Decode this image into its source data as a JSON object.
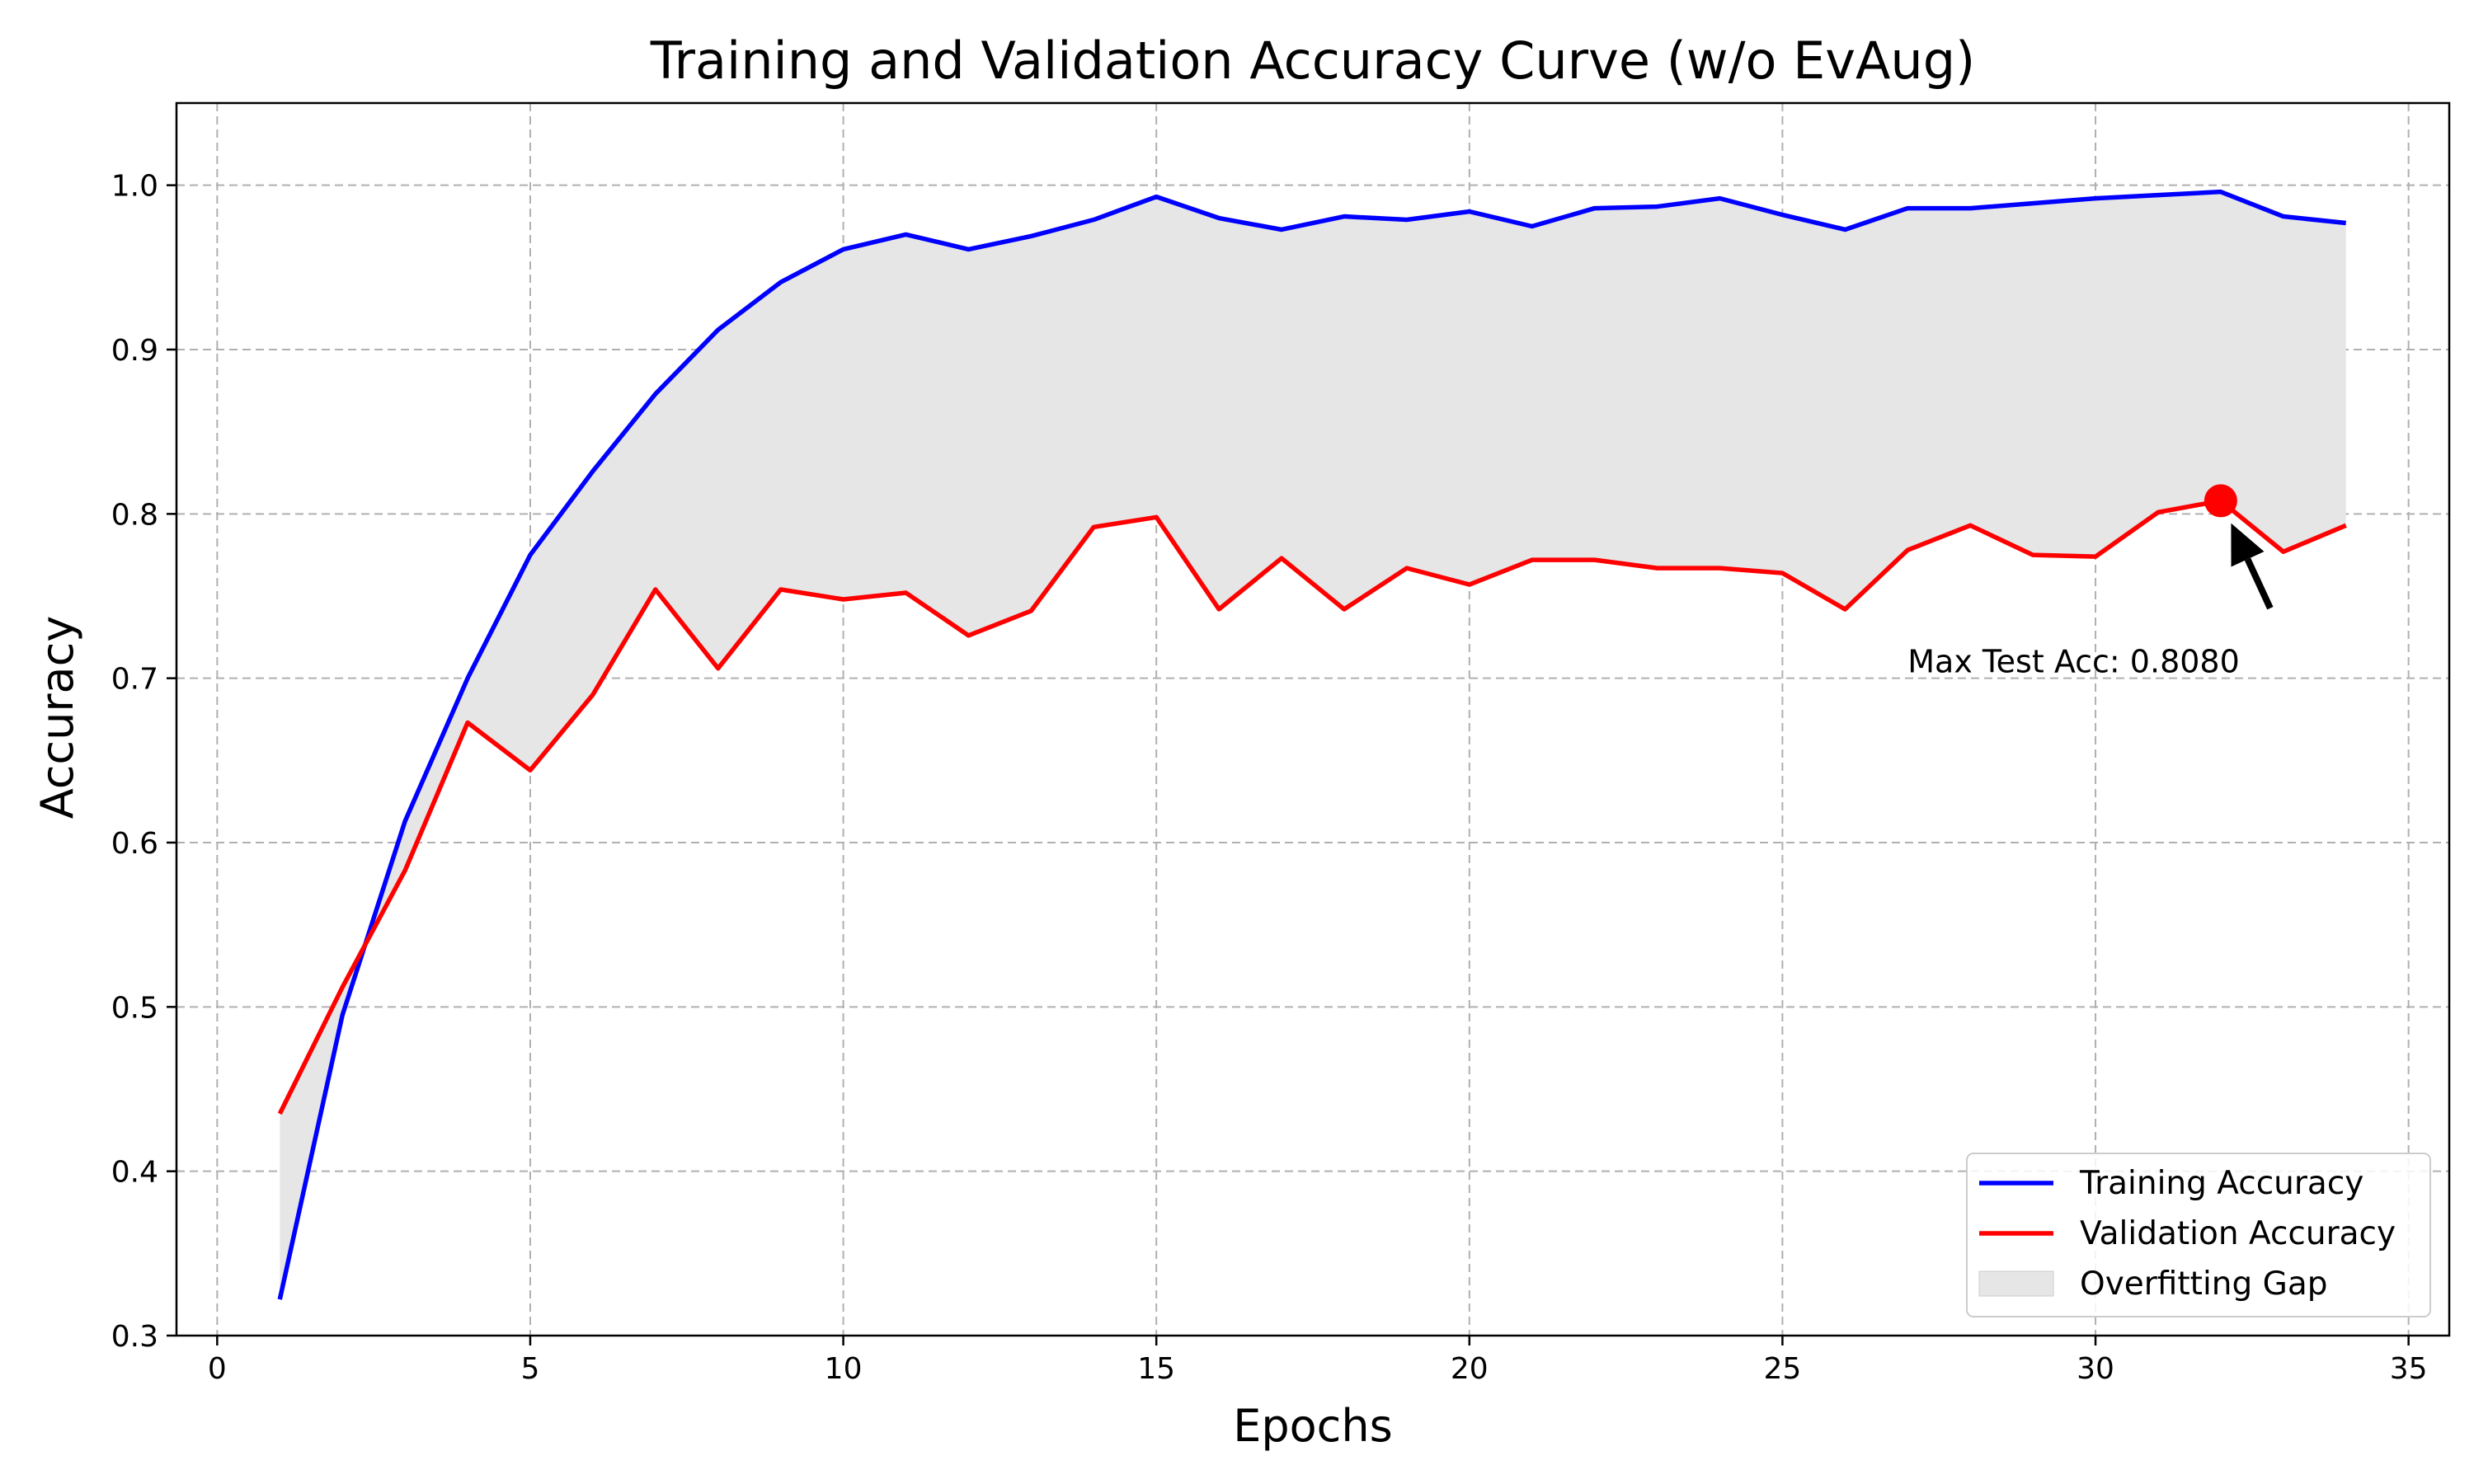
{
  "colors": {
    "training": "#0000ff",
    "validation": "#ff0000",
    "gap_fill": "#e6e6e6",
    "marker": "#ff0000",
    "arrow": "#000000",
    "grid": "#b0b0b0"
  },
  "chart_data": {
    "type": "line",
    "title": "Training and Validation Accuracy Curve (w/o EvAug)",
    "xlabel": "Epochs",
    "ylabel": "Accuracy",
    "xlim": [
      -0.65,
      35.65
    ],
    "ylim": [
      0.3,
      1.05
    ],
    "xticks": [
      0,
      5,
      10,
      15,
      20,
      25,
      30,
      35
    ],
    "yticks": [
      0.3,
      0.4,
      0.5,
      0.6,
      0.7,
      0.8,
      0.9,
      1.0
    ],
    "xtick_labels": [
      "0",
      "5",
      "10",
      "15",
      "20",
      "25",
      "30",
      "35"
    ],
    "ytick_labels": [
      "0.3",
      "0.4",
      "0.5",
      "0.6",
      "0.7",
      "0.8",
      "0.9",
      "1.0"
    ],
    "grid": true,
    "legend_position": "bottom-right",
    "x": [
      1,
      2,
      3,
      4,
      5,
      6,
      7,
      8,
      9,
      10,
      11,
      12,
      13,
      14,
      15,
      16,
      17,
      18,
      19,
      20,
      21,
      22,
      23,
      24,
      25,
      26,
      27,
      28,
      29,
      30,
      31,
      32,
      33,
      34
    ],
    "series": [
      {
        "name": "Training Accuracy",
        "color": "#0000ff",
        "values": [
          0.322,
          0.495,
          0.613,
          0.7,
          0.775,
          0.826,
          0.873,
          0.912,
          0.941,
          0.961,
          0.97,
          0.961,
          0.969,
          0.979,
          0.993,
          0.98,
          0.973,
          0.981,
          0.979,
          0.984,
          0.975,
          0.986,
          0.987,
          0.992,
          0.982,
          0.973,
          0.986,
          0.986,
          0.989,
          0.992,
          0.994,
          0.996,
          0.981,
          0.977
        ]
      },
      {
        "name": "Validation Accuracy",
        "color": "#ff0000",
        "values": [
          0.435,
          0.512,
          0.583,
          0.673,
          0.644,
          0.69,
          0.754,
          0.706,
          0.754,
          0.748,
          0.752,
          0.726,
          0.741,
          0.792,
          0.798,
          0.742,
          0.773,
          0.742,
          0.767,
          0.757,
          0.772,
          0.772,
          0.767,
          0.767,
          0.764,
          0.742,
          0.778,
          0.793,
          0.775,
          0.774,
          0.801,
          0.808,
          0.777,
          0.793
        ]
      }
    ],
    "fill_between": {
      "name": "Overfitting Gap",
      "color": "#e6e6e6"
    },
    "annotation": {
      "text": "Max Test Acc: 0.8080",
      "point_x": 32,
      "point_y": 0.808,
      "text_x": 27,
      "text_y": 0.71
    }
  }
}
